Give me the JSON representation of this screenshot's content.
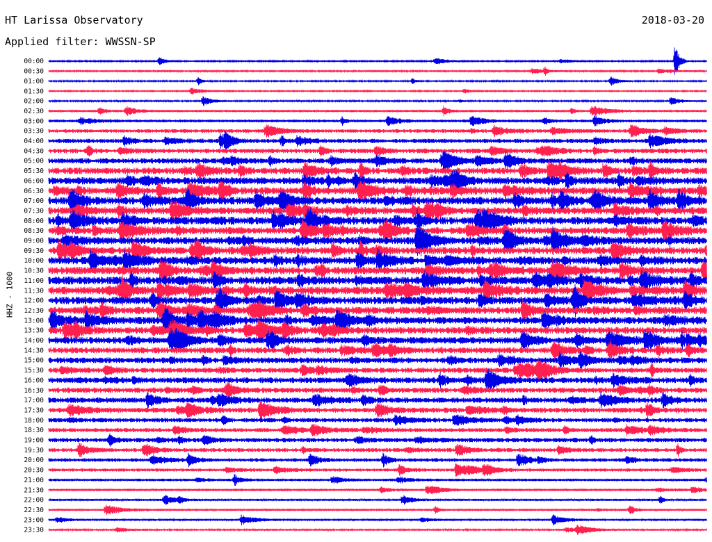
{
  "header": {
    "title": "HT Larissa Observatory",
    "filter": "Applied filter: WWSSN-SP",
    "date": "2018-03-20"
  },
  "chart_data": {
    "type": "line",
    "title": "HT Larissa Observatory",
    "subtitle": "Applied filter: WWSSN-SP",
    "ylabel": "HHZ - 1000",
    "xlabel": "",
    "grid": false,
    "series_colors": [
      "#0000e6",
      "#ff2050"
    ],
    "rows": [
      {
        "label": "00:00",
        "activity": 0.05
      },
      {
        "label": "00:30",
        "activity": 0.1
      },
      {
        "label": "01:00",
        "activity": 0.05
      },
      {
        "label": "01:30",
        "activity": 0.03
      },
      {
        "label": "02:00",
        "activity": 0.08
      },
      {
        "label": "02:30",
        "activity": 0.18
      },
      {
        "label": "03:00",
        "activity": 0.25
      },
      {
        "label": "03:30",
        "activity": 0.35
      },
      {
        "label": "04:00",
        "activity": 0.45
      },
      {
        "label": "04:30",
        "activity": 0.5
      },
      {
        "label": "05:00",
        "activity": 0.6
      },
      {
        "label": "05:30",
        "activity": 0.75
      },
      {
        "label": "06:00",
        "activity": 0.85
      },
      {
        "label": "06:30",
        "activity": 0.9
      },
      {
        "label": "07:00",
        "activity": 0.9
      },
      {
        "label": "07:30",
        "activity": 0.85
      },
      {
        "label": "08:00",
        "activity": 0.9
      },
      {
        "label": "08:30",
        "activity": 0.85
      },
      {
        "label": "09:00",
        "activity": 0.85
      },
      {
        "label": "09:30",
        "activity": 0.85
      },
      {
        "label": "10:00",
        "activity": 0.9
      },
      {
        "label": "10:30",
        "activity": 0.9
      },
      {
        "label": "11:00",
        "activity": 0.95
      },
      {
        "label": "11:30",
        "activity": 0.95
      },
      {
        "label": "12:00",
        "activity": 0.9
      },
      {
        "label": "12:30",
        "activity": 0.85
      },
      {
        "label": "13:00",
        "activity": 0.85
      },
      {
        "label": "13:30",
        "activity": 0.8
      },
      {
        "label": "14:00",
        "activity": 0.8
      },
      {
        "label": "14:30",
        "activity": 0.7
      },
      {
        "label": "15:00",
        "activity": 0.65
      },
      {
        "label": "15:30",
        "activity": 0.6
      },
      {
        "label": "16:00",
        "activity": 0.65
      },
      {
        "label": "16:30",
        "activity": 0.6
      },
      {
        "label": "17:00",
        "activity": 0.6
      },
      {
        "label": "17:30",
        "activity": 0.55
      },
      {
        "label": "18:00",
        "activity": 0.45
      },
      {
        "label": "18:30",
        "activity": 0.45
      },
      {
        "label": "19:00",
        "activity": 0.45
      },
      {
        "label": "19:30",
        "activity": 0.4
      },
      {
        "label": "20:00",
        "activity": 0.35
      },
      {
        "label": "20:30",
        "activity": 0.3
      },
      {
        "label": "21:00",
        "activity": 0.22
      },
      {
        "label": "21:30",
        "activity": 0.2
      },
      {
        "label": "22:00",
        "activity": 0.15
      },
      {
        "label": "22:30",
        "activity": 0.15
      },
      {
        "label": "23:00",
        "activity": 0.12
      },
      {
        "label": "23:30",
        "activity": 0.1
      }
    ]
  }
}
